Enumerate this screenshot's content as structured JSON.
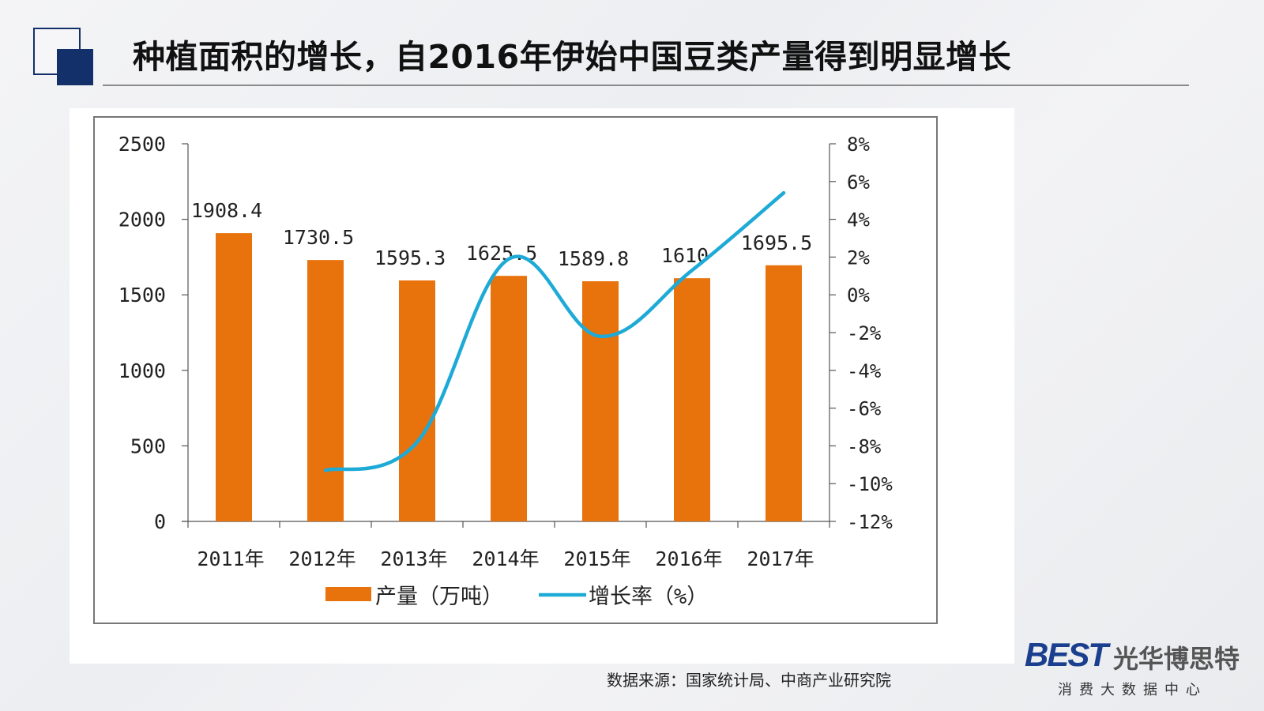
{
  "title": "种植面积的增长，自2016年伊始中国豆类产量得到明显增长",
  "source": "数据来源：国家统计局、中商产业研究院",
  "logo": {
    "mark": "BEST",
    "name": "光华博思特",
    "tagline": "消费大数据中心"
  },
  "colors": {
    "brand_navy": "#14306b",
    "bar": "#e8720c",
    "line": "#1eaad6"
  },
  "chart_data": {
    "type": "bar",
    "categories": [
      "2011年",
      "2012年",
      "2013年",
      "2014年",
      "2015年",
      "2016年",
      "2017年"
    ],
    "series": [
      {
        "name": "产量（万吨）",
        "type": "bar",
        "axis": "left",
        "values": [
          1908.4,
          1730.5,
          1595.3,
          1625.5,
          1589.8,
          1610,
          1695.5
        ],
        "labels": [
          "1908.4",
          "1730.5",
          "1595.3",
          "1625.5",
          "1589.8",
          "1610",
          "1695.5"
        ]
      },
      {
        "name": "增长率（%）",
        "type": "line",
        "axis": "right",
        "values": [
          null,
          -9.3,
          -7.8,
          1.9,
          -2.2,
          1.3,
          5.4
        ]
      }
    ],
    "y_left": {
      "min": 0,
      "max": 2500,
      "ticks": [
        "0",
        "500",
        "1000",
        "1500",
        "2000",
        "2500"
      ]
    },
    "y_right": {
      "min": -12,
      "max": 8,
      "ticks": [
        "-12%",
        "-10%",
        "-8%",
        "-6%",
        "-4%",
        "-2%",
        "0%",
        "2%",
        "4%",
        "6%",
        "8%"
      ]
    },
    "legend": "bottom",
    "grid": false
  }
}
